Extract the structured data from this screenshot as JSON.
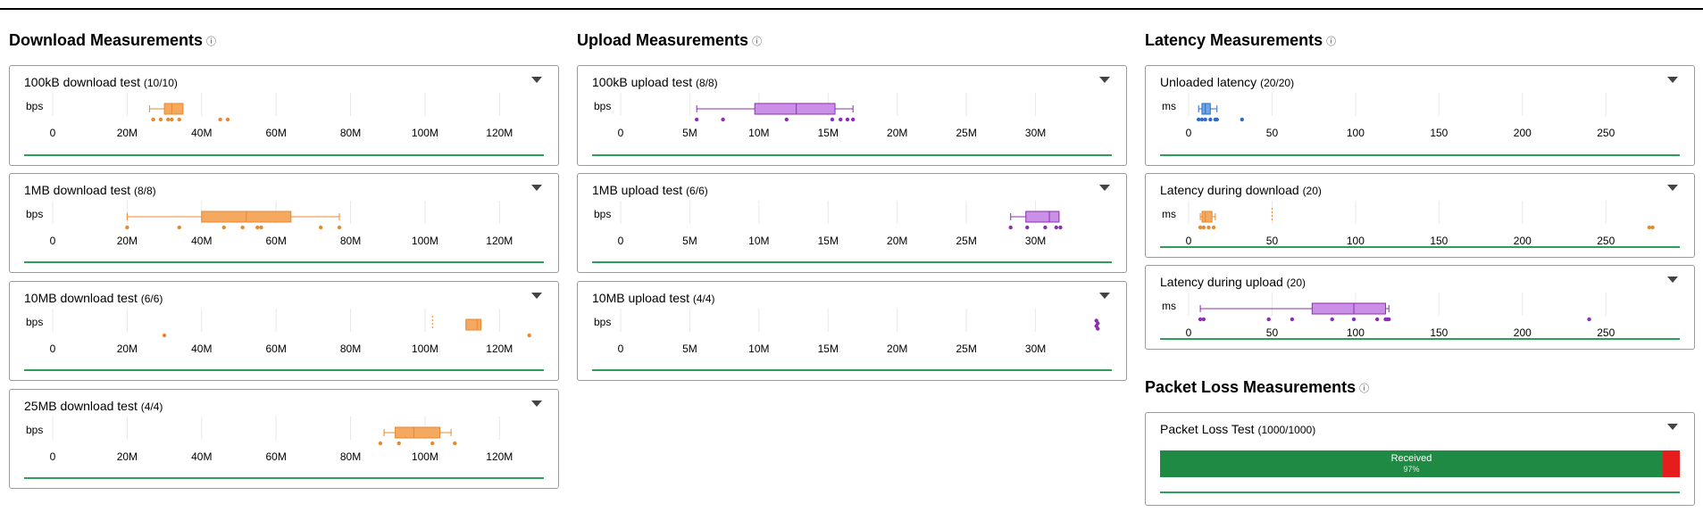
{
  "sections": [
    {
      "title": "Download Measurements",
      "info_icon": "info-icon",
      "color": "#f5a860",
      "stroke": "#e6892f",
      "tests": [
        {
          "name": "100kB download test",
          "count": "(10/10)",
          "unit": "bps",
          "ticks": [
            "0",
            "20M",
            "40M",
            "60M",
            "80M",
            "100M",
            "120M"
          ],
          "tick_values": [
            0,
            20,
            40,
            60,
            80,
            100,
            120
          ],
          "domain": [
            0,
            130
          ],
          "box": {
            "min": 26,
            "q1": 30,
            "median": 32,
            "q3": 35,
            "max": 35
          },
          "outliers": [
            27,
            29,
            31,
            32,
            34,
            45,
            47
          ]
        },
        {
          "name": "1MB download test",
          "count": "(8/8)",
          "unit": "bps",
          "ticks": [
            "0",
            "20M",
            "40M",
            "60M",
            "80M",
            "100M",
            "120M"
          ],
          "tick_values": [
            0,
            20,
            40,
            60,
            80,
            100,
            120
          ],
          "domain": [
            0,
            130
          ],
          "box": {
            "min": 20,
            "q1": 40,
            "median": 52,
            "q3": 64,
            "max": 77
          },
          "outliers": [
            20,
            34,
            46,
            51,
            55,
            56,
            72,
            77
          ]
        },
        {
          "name": "10MB download test",
          "count": "(6/6)",
          "unit": "bps",
          "ticks": [
            "0",
            "20M",
            "40M",
            "60M",
            "80M",
            "100M",
            "120M"
          ],
          "tick_values": [
            0,
            20,
            40,
            60,
            80,
            100,
            120
          ],
          "domain": [
            0,
            130
          ],
          "box": {
            "min": 111,
            "q1": 111,
            "median": 114,
            "q3": 115,
            "max": 115
          },
          "outliers": [
            30,
            128
          ],
          "dashed": [
            102
          ]
        },
        {
          "name": "25MB download test",
          "count": "(4/4)",
          "unit": "bps",
          "ticks": [
            "0",
            "20M",
            "40M",
            "60M",
            "80M",
            "100M",
            "120M"
          ],
          "tick_values": [
            0,
            20,
            40,
            60,
            80,
            100,
            120
          ],
          "domain": [
            0,
            130
          ],
          "box": {
            "min": 89,
            "q1": 92,
            "median": 97,
            "q3": 104,
            "max": 107
          },
          "outliers": [
            88,
            93,
            102,
            108
          ]
        }
      ]
    },
    {
      "title": "Upload Measurements",
      "info_icon": "info-icon",
      "color": "#cc8fe8",
      "stroke": "#8a2fb2",
      "tests": [
        {
          "name": "100kB upload test",
          "count": "(8/8)",
          "unit": "bps",
          "ticks": [
            "0",
            "5M",
            "10M",
            "15M",
            "20M",
            "25M",
            "30M"
          ],
          "tick_values": [
            0,
            5,
            10,
            15,
            20,
            25,
            30
          ],
          "domain": [
            0,
            35
          ],
          "box": {
            "min": 5.5,
            "q1": 9.7,
            "median": 12.7,
            "q3": 15.5,
            "max": 16.8
          },
          "outliers": [
            5.5,
            7.4,
            12.0,
            15.3,
            15.9,
            16.4,
            16.8
          ]
        },
        {
          "name": "1MB upload test",
          "count": "(6/6)",
          "unit": "bps",
          "ticks": [
            "0",
            "5M",
            "10M",
            "15M",
            "20M",
            "25M",
            "30M"
          ],
          "tick_values": [
            0,
            5,
            10,
            15,
            20,
            25,
            30
          ],
          "domain": [
            0,
            35
          ],
          "box": {
            "min": 28.2,
            "q1": 29.3,
            "median": 31.0,
            "q3": 31.7,
            "max": 31.7
          },
          "outliers": [
            28.2,
            29.4,
            30.7,
            31.5,
            31.8
          ]
        },
        {
          "name": "10MB upload test",
          "count": "(4/4)",
          "unit": "bps",
          "ticks": [
            "0",
            "5M",
            "10M",
            "15M",
            "20M",
            "25M",
            "30M"
          ],
          "tick_values": [
            0,
            5,
            10,
            15,
            20,
            25,
            30
          ],
          "domain": [
            0,
            35
          ],
          "box": null,
          "outliers": [
            34.4,
            34.5,
            34.4,
            34.5
          ]
        }
      ]
    },
    {
      "title": "Latency Measurements",
      "info_icon": "info-icon",
      "tests": [
        {
          "name": "Unloaded latency",
          "count": "(20/20)",
          "unit": "ms",
          "color": "#6ea6e8",
          "stroke": "#2c6cc4",
          "ticks": [
            "0",
            "50",
            "100",
            "150",
            "200",
            "250"
          ],
          "tick_values": [
            0,
            50,
            100,
            150,
            200,
            250
          ],
          "domain": [
            0,
            290
          ],
          "box": {
            "min": 6,
            "q1": 8,
            "median": 10,
            "q3": 13,
            "max": 17
          },
          "outliers": [
            6,
            8,
            10,
            13,
            16,
            17,
            32
          ]
        },
        {
          "name": "Latency during download",
          "count": "(20)",
          "unit": "ms",
          "color": "#f5a860",
          "stroke": "#e6892f",
          "ticks": [
            "0",
            "50",
            "100",
            "150",
            "200",
            "250"
          ],
          "tick_values": [
            0,
            50,
            100,
            150,
            200,
            250
          ],
          "domain": [
            0,
            290
          ],
          "box": {
            "min": 7,
            "q1": 8,
            "median": 10,
            "q3": 14,
            "max": 16
          },
          "outliers": [
            7,
            9,
            12,
            15,
            276,
            278
          ],
          "dashed": [
            50
          ]
        },
        {
          "name": "Latency during upload",
          "count": "(20)",
          "unit": "ms",
          "color": "#cc8fe8",
          "stroke": "#8a2fb2",
          "ticks": [
            "0",
            "50",
            "100",
            "150",
            "200",
            "250"
          ],
          "tick_values": [
            0,
            50,
            100,
            150,
            200,
            250
          ],
          "domain": [
            0,
            290
          ],
          "box": {
            "min": 7,
            "q1": 74,
            "median": 99,
            "q3": 118,
            "max": 120
          },
          "outliers": [
            7,
            9,
            48,
            62,
            86,
            99,
            113,
            118,
            119,
            120,
            240
          ]
        }
      ]
    },
    {
      "title": "Packet Loss Measurements",
      "info_icon": "info-icon",
      "tests": [
        {
          "name": "Packet Loss Test",
          "count": "(1000/1000)",
          "received_label": "Received",
          "received_pct": "97%",
          "received_fraction": 0.97,
          "green": "#1f8a44",
          "red": "#e51d1d"
        }
      ]
    }
  ]
}
